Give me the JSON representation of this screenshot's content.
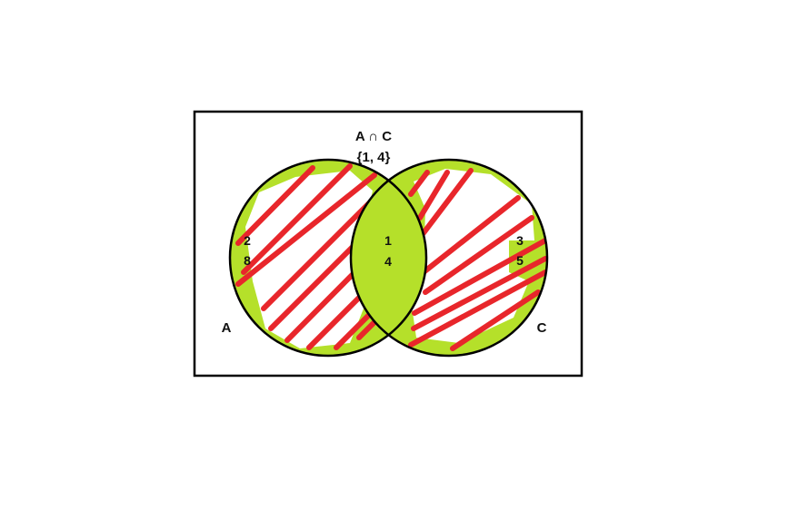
{
  "diagram": {
    "title": "A ∩ C",
    "intersection_set": "{1, 4}",
    "set_a": {
      "label": "A",
      "only_elements": [
        "2",
        "8"
      ]
    },
    "set_c": {
      "label": "C",
      "only_elements": [
        "3",
        "5"
      ]
    },
    "intersection_elements": [
      "1",
      "4"
    ]
  },
  "colors": {
    "fill": "#b5e02a",
    "hatch": "#e8262b",
    "outline": "#000000",
    "background": "#ffffff"
  }
}
